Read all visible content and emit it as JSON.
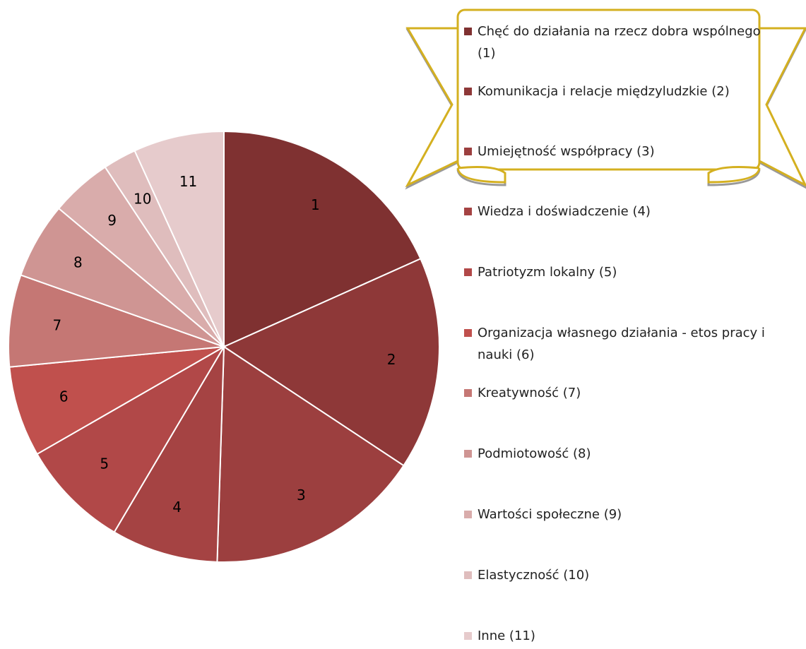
{
  "chart_data": {
    "type": "pie",
    "categories": [
      "Chęć do działania na rzecz dobra wspólnego (1)",
      "Komunikacja i relacje międzyludzkie (2)",
      "Umiejętność współpracy (3)",
      "Wiedza i doświadczenie (4)",
      "Patriotyzm lokalny (5)",
      "Organizacja własnego działania - etos pracy i nauki (6)",
      "Kreatywność (7)",
      "Podmiotowość (8)",
      "Wartości społeczne (9)",
      "Elastyczność (10)",
      "Inne (11)"
    ],
    "values": [
      18.3,
      16.0,
      16.2,
      8.0,
      8.2,
      6.8,
      6.9,
      5.7,
      4.6,
      2.5,
      6.8
    ],
    "value_labels": [
      "1",
      "2",
      "3",
      "4",
      "5",
      "6",
      "7",
      "8",
      "9",
      "10",
      "11"
    ],
    "colors": [
      "#7f3131",
      "#8e3838",
      "#9c3f3f",
      "#a54343",
      "#b14848",
      "#c0504d",
      "#c57774",
      "#cf9593",
      "#d9acab",
      "#dfbdbd",
      "#e6cbcc"
    ],
    "legend": "right"
  }
}
